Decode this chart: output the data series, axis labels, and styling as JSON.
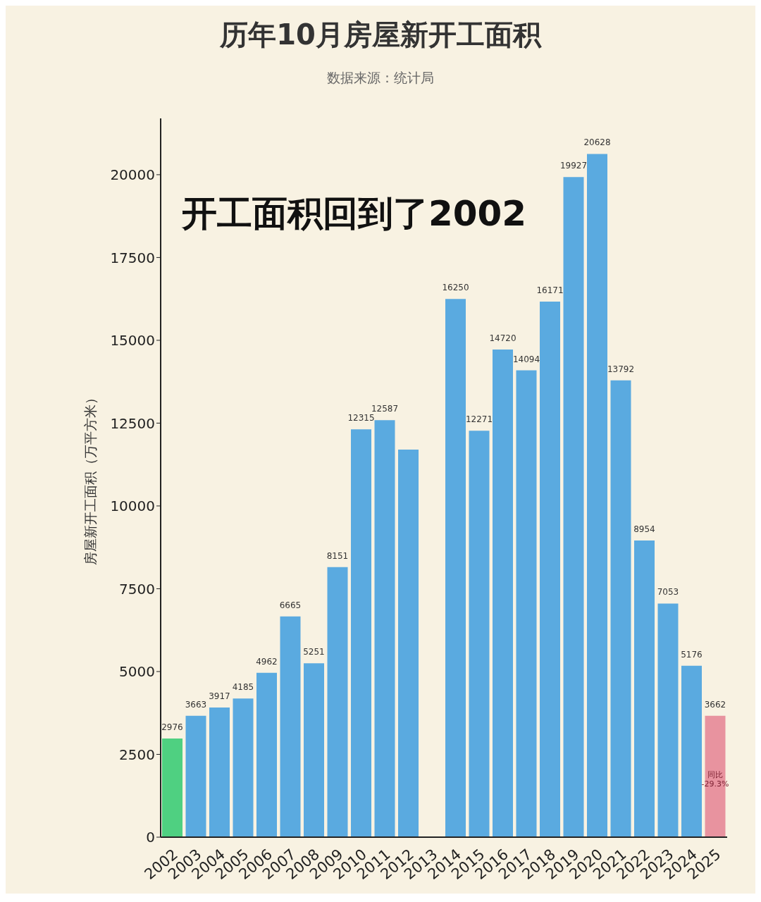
{
  "chart_data": {
    "type": "bar",
    "title": "历年10月房屋新开工面积",
    "subtitle": "数据来源：统计局",
    "ylabel": "房屋新开工面积（万平方米）",
    "categories": [
      "2002",
      "2003",
      "2004",
      "2005",
      "2006",
      "2007",
      "2008",
      "2009",
      "2010",
      "2011",
      "2012",
      "2013",
      "2014",
      "2015",
      "2016",
      "2017",
      "2018",
      "2019",
      "2020",
      "2021",
      "2022",
      "2023",
      "2024",
      "2025"
    ],
    "values": [
      2976,
      3663,
      3917,
      4185,
      4962,
      6665,
      5251,
      8151,
      12315,
      12587,
      11700,
      null,
      16250,
      12271,
      14720,
      14094,
      16171,
      19927,
      20628,
      13792,
      8954,
      7053,
      5176,
      3662
    ],
    "value_labels": [
      "2976",
      "3663",
      "3917",
      "4185",
      "4962",
      "6665",
      "5251",
      "8151",
      "12315",
      "12587",
      null,
      null,
      "16250",
      "12271",
      "14720",
      "14094",
      "16171",
      "19927",
      "20628",
      "13792",
      "8954",
      "7053",
      "5176",
      "3662"
    ],
    "colors": [
      "#4fd081",
      "#5aaae0",
      "#5aaae0",
      "#5aaae0",
      "#5aaae0",
      "#5aaae0",
      "#5aaae0",
      "#5aaae0",
      "#5aaae0",
      "#5aaae0",
      "#5aaae0",
      "#5aaae0",
      "#5aaae0",
      "#5aaae0",
      "#5aaae0",
      "#5aaae0",
      "#5aaae0",
      "#5aaae0",
      "#5aaae0",
      "#5aaae0",
      "#5aaae0",
      "#5aaae0",
      "#5aaae0",
      "#e8939f"
    ],
    "ylim": [
      0,
      21700
    ],
    "yticks": [
      0,
      2500,
      5000,
      7500,
      10000,
      12500,
      15000,
      17500,
      20000
    ],
    "annotations": [
      "开工面积回到了2002",
      {
        "text": "同比\n-29.3%",
        "x": "2025",
        "y": 1800
      }
    ]
  }
}
